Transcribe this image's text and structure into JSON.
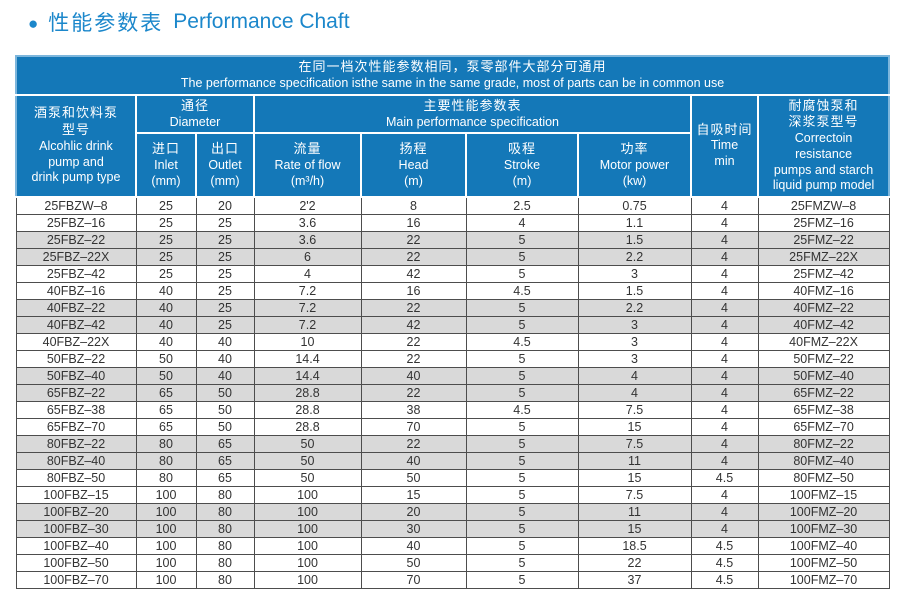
{
  "title": {
    "bullet": "●",
    "zh": "性能参数表",
    "en": "Performance Chaft"
  },
  "banner": {
    "line_zh": "在同一档次性能参数相同，泵零部件大部分可通用",
    "line_en": "The performance specification isthe same in the same grade, most of parts can be in common use"
  },
  "header": {
    "pump_type": {
      "l1": "酒泵和饮料泵",
      "l2": "型号",
      "l3": "Alcohlic drink",
      "l4": "pump and",
      "l5": "drink pump type"
    },
    "diameter": {
      "zh": "通径",
      "en": "Diameter"
    },
    "inlet": {
      "zh": "进口",
      "en": "Inlet",
      "unit": "(mm)"
    },
    "outlet": {
      "zh": "出口",
      "en": "Outlet",
      "unit": "(mm)"
    },
    "main": {
      "zh": "主要性能参数表",
      "en": "Main performance specification"
    },
    "flow": {
      "zh": "流量",
      "en": "Rate of flow",
      "unit": "(m³/h)"
    },
    "head": {
      "zh": "扬程",
      "en": "Head",
      "unit": "(m)"
    },
    "stroke": {
      "zh": "吸程",
      "en": "Stroke",
      "unit": "(m)"
    },
    "power": {
      "zh": "功率",
      "en": "Motor power",
      "unit": "(kw)"
    },
    "time": {
      "zh": "自吸时间",
      "en": "Time",
      "unit": "min"
    },
    "model2": {
      "l1": "耐腐蚀泵和",
      "l2": "深浆泵型号",
      "l3": "Correctoin",
      "l4": "resistance",
      "l5": "pumps and starch",
      "l6": "liquid pump model"
    }
  },
  "colors": {
    "header-blue": "#1478b8",
    "title-blue": "#1b87cb",
    "row-shade": "#d9d9d9",
    "grid": "#4d4d4d",
    "edge": "#7db6dc",
    "text": "#333333"
  },
  "chart_data": {
    "type": "table",
    "columns": [
      "Alcoholic drink pump type",
      "Inlet (mm)",
      "Outlet (mm)",
      "Rate of flow (m³/h)",
      "Head (m)",
      "Stroke (m)",
      "Motor power (kw)",
      "Time (min)",
      "Corrosion resistance / starch liquid pump model"
    ],
    "rows": [
      {
        "cells": [
          "25FBZW–8",
          "25",
          "20",
          "2'2",
          "8",
          "2.5",
          "0.75",
          "4",
          "25FMZW–8"
        ],
        "shaded": false
      },
      {
        "cells": [
          "25FBZ–16",
          "25",
          "25",
          "3.6",
          "16",
          "4",
          "1.1",
          "4",
          "25FMZ–16"
        ],
        "shaded": false
      },
      {
        "cells": [
          "25FBZ–22",
          "25",
          "25",
          "3.6",
          "22",
          "5",
          "1.5",
          "4",
          "25FMZ–22"
        ],
        "shaded": true
      },
      {
        "cells": [
          "25FBZ–22X",
          "25",
          "25",
          "6",
          "22",
          "5",
          "2.2",
          "4",
          "25FMZ–22X"
        ],
        "shaded": true
      },
      {
        "cells": [
          "25FBZ–42",
          "25",
          "25",
          "4",
          "42",
          "5",
          "3",
          "4",
          "25FMZ–42"
        ],
        "shaded": false
      },
      {
        "cells": [
          "40FBZ–16",
          "40",
          "25",
          "7.2",
          "16",
          "4.5",
          "1.5",
          "4",
          "40FMZ–16"
        ],
        "shaded": false
      },
      {
        "cells": [
          "40FBZ–22",
          "40",
          "25",
          "7.2",
          "22",
          "5",
          "2.2",
          "4",
          "40FMZ–22"
        ],
        "shaded": true
      },
      {
        "cells": [
          "40FBZ–42",
          "40",
          "25",
          "7.2",
          "42",
          "5",
          "3",
          "4",
          "40FMZ–42"
        ],
        "shaded": true
      },
      {
        "cells": [
          "40FBZ–22X",
          "40",
          "40",
          "10",
          "22",
          "4.5",
          "3",
          "4",
          "40FMZ–22X"
        ],
        "shaded": false
      },
      {
        "cells": [
          "50FBZ–22",
          "50",
          "40",
          "14.4",
          "22",
          "5",
          "3",
          "4",
          "50FMZ–22"
        ],
        "shaded": false
      },
      {
        "cells": [
          "50FBZ–40",
          "50",
          "40",
          "14.4",
          "40",
          "5",
          "4",
          "4",
          "50FMZ–40"
        ],
        "shaded": true
      },
      {
        "cells": [
          "65FBZ–22",
          "65",
          "50",
          "28.8",
          "22",
          "5",
          "4",
          "4",
          "65FMZ–22"
        ],
        "shaded": true
      },
      {
        "cells": [
          "65FBZ–38",
          "65",
          "50",
          "28.8",
          "38",
          "4.5",
          "7.5",
          "4",
          "65FMZ–38"
        ],
        "shaded": false
      },
      {
        "cells": [
          "65FBZ–70",
          "65",
          "50",
          "28.8",
          "70",
          "5",
          "15",
          "4",
          "65FMZ–70"
        ],
        "shaded": false
      },
      {
        "cells": [
          "80FBZ–22",
          "80",
          "65",
          "50",
          "22",
          "5",
          "7.5",
          "4",
          "80FMZ–22"
        ],
        "shaded": true
      },
      {
        "cells": [
          "80FBZ–40",
          "80",
          "65",
          "50",
          "40",
          "5",
          "11",
          "4",
          "80FMZ–40"
        ],
        "shaded": true
      },
      {
        "cells": [
          "80FBZ–50",
          "80",
          "65",
          "50",
          "50",
          "5",
          "15",
          "4.5",
          "80FMZ–50"
        ],
        "shaded": false
      },
      {
        "cells": [
          "100FBZ–15",
          "100",
          "80",
          "100",
          "15",
          "5",
          "7.5",
          "4",
          "100FMZ–15"
        ],
        "shaded": false
      },
      {
        "cells": [
          "100FBZ–20",
          "100",
          "80",
          "100",
          "20",
          "5",
          "11",
          "4",
          "100FMZ–20"
        ],
        "shaded": true
      },
      {
        "cells": [
          "100FBZ–30",
          "100",
          "80",
          "100",
          "30",
          "5",
          "15",
          "4",
          "100FMZ–30"
        ],
        "shaded": true
      },
      {
        "cells": [
          "100FBZ–40",
          "100",
          "80",
          "100",
          "40",
          "5",
          "18.5",
          "4.5",
          "100FMZ–40"
        ],
        "shaded": false
      },
      {
        "cells": [
          "100FBZ–50",
          "100",
          "80",
          "100",
          "50",
          "5",
          "22",
          "4.5",
          "100FMZ–50"
        ],
        "shaded": false
      },
      {
        "cells": [
          "100FBZ–70",
          "100",
          "80",
          "100",
          "70",
          "5",
          "37",
          "4.5",
          "100FMZ–70"
        ],
        "shaded": false
      }
    ],
    "cell_names": [
      "pump-model",
      "inlet",
      "outlet",
      "flow",
      "head",
      "stroke",
      "power",
      "time",
      "resistance-model"
    ]
  }
}
